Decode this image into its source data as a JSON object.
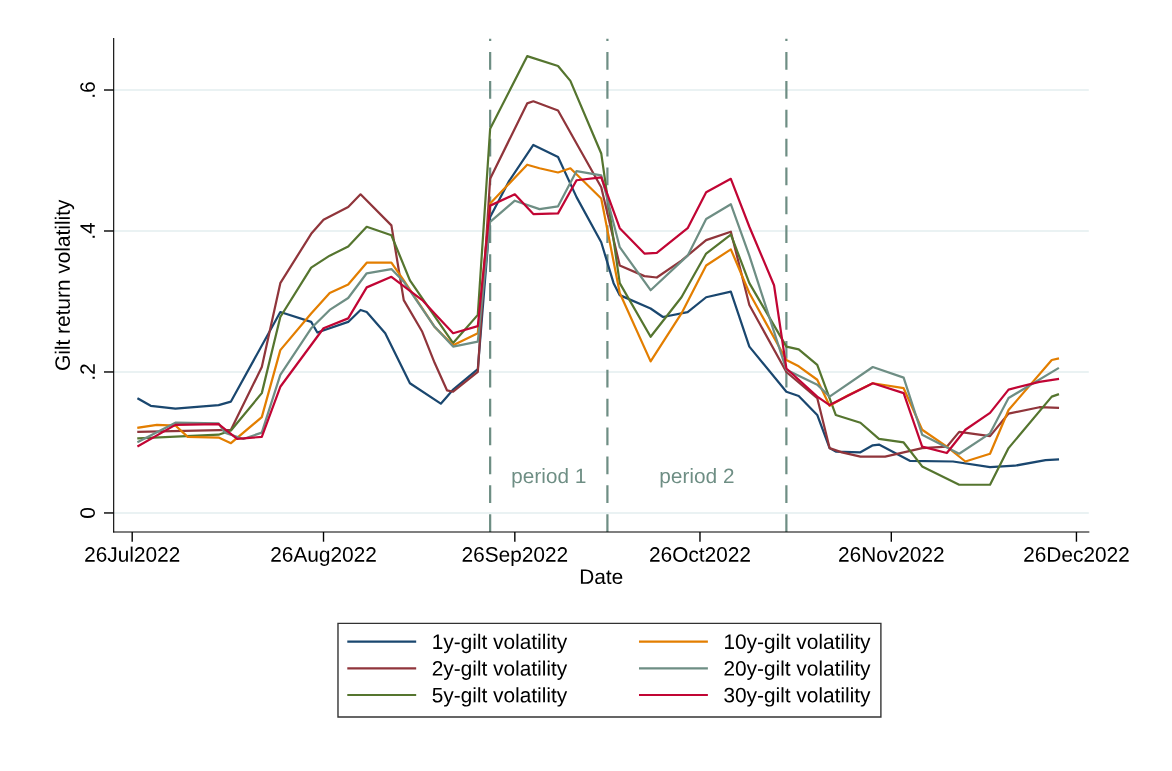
{
  "chart_data": {
    "type": "line",
    "xlabel": "Date",
    "ylabel": "Gilt return volatility",
    "xlim": [
      "2022-07-23",
      "2022-12-28"
    ],
    "ylim": [
      -0.027,
      0.673
    ],
    "xticks": [
      {
        "value": "2022-07-26",
        "label": "26Jul2022"
      },
      {
        "value": "2022-08-26",
        "label": "26Aug2022"
      },
      {
        "value": "2022-09-26",
        "label": "26Sep2022"
      },
      {
        "value": "2022-10-26",
        "label": "26Oct2022"
      },
      {
        "value": "2022-11-26",
        "label": "26Nov2022"
      },
      {
        "value": "2022-12-26",
        "label": "26Dec2022"
      }
    ],
    "yticks": [
      0,
      {
        "value": 0.2,
        "label": ".2"
      },
      {
        "value": 0.4,
        "label": ".4"
      },
      {
        "value": 0.6,
        "label": ".6"
      }
    ],
    "grid": "y",
    "legend": "bottom",
    "ref_lines": [
      {
        "axis": "x",
        "value": "2022-09-22",
        "color": "#6e8e84",
        "line_style": "dashed"
      },
      {
        "axis": "x",
        "value": "2022-10-11",
        "color": "#6e8e84",
        "line_style": "dashed"
      },
      {
        "axis": "x",
        "value": "2022-11-09",
        "color": "#6e8e84",
        "line_style": "dashed"
      }
    ],
    "annotations": [
      "period 1",
      "period 2"
    ],
    "series": [
      {
        "name": "1y-gilt volatility",
        "color": "#1a476f",
        "x": [
          "2022-07-27",
          "2022-07-29",
          "2022-08-02",
          "2022-08-09",
          "2022-08-11",
          "2022-08-19",
          "2022-08-24",
          "2022-08-25",
          "2022-08-30",
          "2022-09-01",
          "2022-09-02",
          "2022-09-05",
          "2022-09-09",
          "2022-09-14",
          "2022-09-15",
          "2022-09-16",
          "2022-09-20",
          "2022-09-22",
          "2022-09-25",
          "2022-09-29",
          "2022-10-03",
          "2022-10-06",
          "2022-10-10",
          "2022-10-12",
          "2022-10-13",
          "2022-10-18",
          "2022-10-20",
          "2022-10-24",
          "2022-10-27",
          "2022-10-31",
          "2022-11-03",
          "2022-11-09",
          "2022-11-11",
          "2022-11-14",
          "2022-11-16",
          "2022-11-17",
          "2022-11-21",
          "2022-11-23",
          "2022-11-24",
          "2022-11-29",
          "2022-12-06",
          "2022-12-12",
          "2022-12-16",
          "2022-12-21",
          "2022-12-23"
        ],
        "values": [
          0.162,
          0.152,
          0.148,
          0.153,
          0.158,
          0.285,
          0.271,
          0.256,
          0.271,
          0.288,
          0.285,
          0.255,
          0.184,
          0.155,
          0.165,
          0.175,
          0.204,
          0.42,
          0.47,
          0.522,
          0.505,
          0.448,
          0.384,
          0.326,
          0.309,
          0.29,
          0.278,
          0.285,
          0.306,
          0.314,
          0.236,
          0.172,
          0.166,
          0.139,
          0.092,
          0.087,
          0.086,
          0.096,
          0.097,
          0.074,
          0.073,
          0.065,
          0.067,
          0.075,
          0.076
        ]
      },
      {
        "name": "2y-gilt volatility",
        "color": "#90353b",
        "x": [
          "2022-07-27",
          "2022-08-11",
          "2022-08-16",
          "2022-08-19",
          "2022-08-24",
          "2022-08-26",
          "2022-08-30",
          "2022-09-01",
          "2022-09-06",
          "2022-09-08",
          "2022-09-11",
          "2022-09-13",
          "2022-09-15",
          "2022-09-16",
          "2022-09-20",
          "2022-09-22",
          "2022-09-28",
          "2022-09-29",
          "2022-10-03",
          "2022-10-06",
          "2022-10-10",
          "2022-10-13",
          "2022-10-17",
          "2022-10-19",
          "2022-10-23",
          "2022-10-27",
          "2022-10-31",
          "2022-11-03",
          "2022-11-09",
          "2022-11-14",
          "2022-11-16",
          "2022-11-18",
          "2022-11-21",
          "2022-11-25",
          "2022-12-01",
          "2022-12-05",
          "2022-12-07",
          "2022-12-12",
          "2022-12-15",
          "2022-12-20",
          "2022-12-23"
        ],
        "values": [
          0.115,
          0.118,
          0.207,
          0.326,
          0.396,
          0.416,
          0.434,
          0.452,
          0.408,
          0.302,
          0.257,
          0.213,
          0.174,
          0.172,
          0.2,
          0.474,
          0.581,
          0.584,
          0.571,
          0.524,
          0.462,
          0.351,
          0.336,
          0.334,
          0.358,
          0.387,
          0.399,
          0.295,
          0.2,
          0.163,
          0.092,
          0.086,
          0.08,
          0.08,
          0.092,
          0.094,
          0.115,
          0.109,
          0.141,
          0.15,
          0.149
        ]
      },
      {
        "name": "5y-gilt volatility",
        "color": "#55752f",
        "x": [
          "2022-07-27",
          "2022-08-09",
          "2022-08-11",
          "2022-08-16",
          "2022-08-19",
          "2022-08-24",
          "2022-08-27",
          "2022-08-30",
          "2022-09-02",
          "2022-09-06",
          "2022-09-09",
          "2022-09-16",
          "2022-09-20",
          "2022-09-22",
          "2022-09-28",
          "2022-10-03",
          "2022-10-05",
          "2022-10-10",
          "2022-10-13",
          "2022-10-18",
          "2022-10-23",
          "2022-10-27",
          "2022-10-31",
          "2022-11-03",
          "2022-11-09",
          "2022-11-11",
          "2022-11-14",
          "2022-11-17",
          "2022-11-21",
          "2022-11-24",
          "2022-11-28",
          "2022-12-01",
          "2022-12-07",
          "2022-12-12",
          "2022-12-15",
          "2022-12-22",
          "2022-12-23"
        ],
        "values": [
          0.106,
          0.111,
          0.117,
          0.17,
          0.278,
          0.348,
          0.365,
          0.378,
          0.406,
          0.394,
          0.33,
          0.241,
          0.281,
          0.545,
          0.648,
          0.634,
          0.613,
          0.51,
          0.326,
          0.25,
          0.306,
          0.368,
          0.395,
          0.326,
          0.236,
          0.232,
          0.21,
          0.139,
          0.128,
          0.105,
          0.1,
          0.066,
          0.04,
          0.04,
          0.092,
          0.165,
          0.168
        ]
      },
      {
        "name": "10y-gilt volatility",
        "color": "#e37e00",
        "x": [
          "2022-07-27",
          "2022-07-30",
          "2022-08-02",
          "2022-08-04",
          "2022-08-09",
          "2022-08-11",
          "2022-08-16",
          "2022-08-19",
          "2022-08-24",
          "2022-08-27",
          "2022-08-30",
          "2022-09-02",
          "2022-09-06",
          "2022-09-08",
          "2022-09-13",
          "2022-09-16",
          "2022-09-20",
          "2022-09-22",
          "2022-09-28",
          "2022-09-30",
          "2022-10-03",
          "2022-10-05",
          "2022-10-10",
          "2022-10-13",
          "2022-10-18",
          "2022-10-23",
          "2022-10-27",
          "2022-10-31",
          "2022-11-03",
          "2022-11-09",
          "2022-11-11",
          "2022-11-14",
          "2022-11-16",
          "2022-11-19",
          "2022-11-23",
          "2022-11-28",
          "2022-12-01",
          "2022-12-05",
          "2022-12-08",
          "2022-12-12",
          "2022-12-15",
          "2022-12-22",
          "2022-12-23"
        ],
        "values": [
          0.121,
          0.125,
          0.124,
          0.108,
          0.107,
          0.099,
          0.136,
          0.231,
          0.283,
          0.312,
          0.324,
          0.355,
          0.355,
          0.33,
          0.264,
          0.238,
          0.255,
          0.439,
          0.494,
          0.489,
          0.483,
          0.489,
          0.446,
          0.312,
          0.215,
          0.283,
          0.351,
          0.374,
          0.312,
          0.217,
          0.208,
          0.189,
          0.152,
          0.167,
          0.184,
          0.177,
          0.118,
          0.094,
          0.073,
          0.084,
          0.146,
          0.217,
          0.219
        ]
      },
      {
        "name": "20y-gilt volatility",
        "color": "#6e8e84",
        "x": [
          "2022-07-27",
          "2022-08-02",
          "2022-08-09",
          "2022-08-10",
          "2022-08-13",
          "2022-08-16",
          "2022-08-19",
          "2022-08-24",
          "2022-08-27",
          "2022-08-30",
          "2022-09-02",
          "2022-09-06",
          "2022-09-08",
          "2022-09-13",
          "2022-09-16",
          "2022-09-20",
          "2022-09-22",
          "2022-09-26",
          "2022-09-30",
          "2022-10-03",
          "2022-10-06",
          "2022-10-10",
          "2022-10-13",
          "2022-10-18",
          "2022-10-24",
          "2022-10-27",
          "2022-10-31",
          "2022-11-03",
          "2022-11-09",
          "2022-11-14",
          "2022-11-16",
          "2022-11-23",
          "2022-11-28",
          "2022-12-01",
          "2022-12-07",
          "2022-12-12",
          "2022-12-15",
          "2022-12-23"
        ],
        "values": [
          0.101,
          0.128,
          0.127,
          0.114,
          0.105,
          0.114,
          0.196,
          0.262,
          0.288,
          0.305,
          0.34,
          0.346,
          0.328,
          0.264,
          0.236,
          0.243,
          0.413,
          0.443,
          0.431,
          0.435,
          0.485,
          0.479,
          0.377,
          0.316,
          0.365,
          0.417,
          0.438,
          0.365,
          0.203,
          0.182,
          0.165,
          0.207,
          0.192,
          0.111,
          0.084,
          0.113,
          0.163,
          0.205
        ]
      },
      {
        "name": "30y-gilt volatility",
        "color": "#c10534",
        "x": [
          "2022-07-27",
          "2022-08-02",
          "2022-08-09",
          "2022-08-12",
          "2022-08-16",
          "2022-08-19",
          "2022-08-26",
          "2022-08-30",
          "2022-09-02",
          "2022-09-06",
          "2022-09-11",
          "2022-09-13",
          "2022-09-16",
          "2022-09-20",
          "2022-09-22",
          "2022-09-26",
          "2022-09-29",
          "2022-10-03",
          "2022-10-06",
          "2022-10-10",
          "2022-10-13",
          "2022-10-17",
          "2022-10-19",
          "2022-10-24",
          "2022-10-27",
          "2022-10-31",
          "2022-11-03",
          "2022-11-07",
          "2022-11-09",
          "2022-11-14",
          "2022-11-16",
          "2022-11-23",
          "2022-11-28",
          "2022-12-01",
          "2022-12-05",
          "2022-12-08",
          "2022-12-12",
          "2022-12-15",
          "2022-12-20",
          "2022-12-23"
        ],
        "values": [
          0.095,
          0.125,
          0.126,
          0.105,
          0.108,
          0.179,
          0.262,
          0.276,
          0.32,
          0.335,
          0.302,
          0.283,
          0.255,
          0.265,
          0.436,
          0.452,
          0.424,
          0.425,
          0.472,
          0.476,
          0.404,
          0.368,
          0.369,
          0.404,
          0.455,
          0.474,
          0.406,
          0.323,
          0.205,
          0.165,
          0.153,
          0.184,
          0.17,
          0.094,
          0.085,
          0.118,
          0.142,
          0.175,
          0.186,
          0.19
        ]
      }
    ]
  }
}
